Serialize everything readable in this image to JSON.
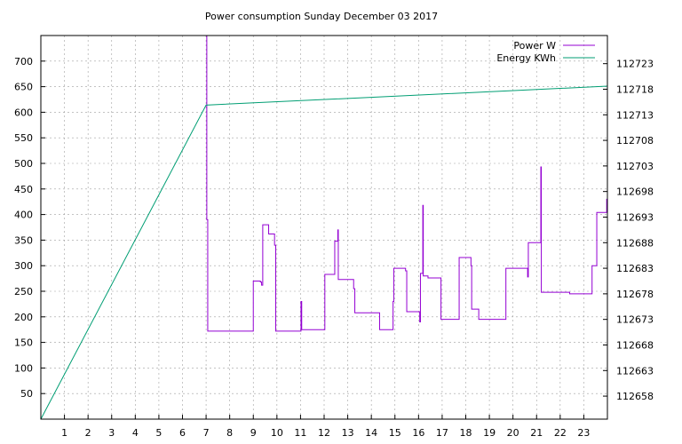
{
  "chart_data": {
    "type": "line",
    "title": "Power consumption Sunday December 03 2017",
    "xlabel": "",
    "ylabel": "",
    "y2label": "",
    "grid": true,
    "legend_position": "top-right",
    "x_ticks": [
      "1",
      "2",
      "3",
      "4",
      "5",
      "6",
      "7",
      "8",
      "9",
      "10",
      "11",
      "12",
      "13",
      "14",
      "15",
      "16",
      "17",
      "18",
      "19",
      "20",
      "21",
      "22",
      "23"
    ],
    "xlim": [
      0,
      24
    ],
    "y_ticks": [
      50,
      100,
      150,
      200,
      250,
      300,
      350,
      400,
      450,
      500,
      550,
      600,
      650,
      700
    ],
    "ylim": [
      0,
      750
    ],
    "y2_ticks": [
      112658,
      112663,
      112668,
      112673,
      112678,
      112683,
      112688,
      112693,
      112698,
      112703,
      112708,
      112713,
      112718,
      112723
    ],
    "y2lim": [
      112653.5,
      112728.5
    ],
    "series": [
      {
        "name": "Power W",
        "axis": "left",
        "color": "#9400d3",
        "step": true,
        "points": [
          [
            7.0,
            750
          ],
          [
            7.03,
            390
          ],
          [
            7.07,
            172
          ],
          [
            9.0,
            172
          ],
          [
            9.0,
            270
          ],
          [
            9.3,
            268
          ],
          [
            9.35,
            262
          ],
          [
            9.4,
            380
          ],
          [
            9.6,
            380
          ],
          [
            9.65,
            362
          ],
          [
            9.85,
            362
          ],
          [
            9.9,
            340
          ],
          [
            9.95,
            172
          ],
          [
            11.0,
            172
          ],
          [
            11.02,
            230
          ],
          [
            11.05,
            175
          ],
          [
            12.0,
            175
          ],
          [
            12.03,
            283
          ],
          [
            12.4,
            283
          ],
          [
            12.45,
            348
          ],
          [
            12.55,
            348
          ],
          [
            12.58,
            370
          ],
          [
            12.6,
            273
          ],
          [
            13.2,
            273
          ],
          [
            13.25,
            255
          ],
          [
            13.3,
            208
          ],
          [
            14.3,
            208
          ],
          [
            14.35,
            175
          ],
          [
            14.9,
            175
          ],
          [
            14.92,
            230
          ],
          [
            14.95,
            295
          ],
          [
            15.4,
            295
          ],
          [
            15.45,
            290
          ],
          [
            15.5,
            210
          ],
          [
            16.0,
            210
          ],
          [
            16.05,
            190
          ],
          [
            16.08,
            285
          ],
          [
            16.15,
            285
          ],
          [
            16.18,
            418
          ],
          [
            16.2,
            280
          ],
          [
            16.4,
            276
          ],
          [
            16.9,
            276
          ],
          [
            16.95,
            195
          ],
          [
            17.7,
            195
          ],
          [
            17.72,
            316
          ],
          [
            18.2,
            316
          ],
          [
            18.22,
            300
          ],
          [
            18.25,
            215
          ],
          [
            18.5,
            215
          ],
          [
            18.55,
            195
          ],
          [
            19.65,
            195
          ],
          [
            19.7,
            295
          ],
          [
            20.6,
            295
          ],
          [
            20.62,
            278
          ],
          [
            20.65,
            345
          ],
          [
            21.15,
            345
          ],
          [
            21.18,
            493
          ],
          [
            21.2,
            248
          ],
          [
            22.35,
            248
          ],
          [
            22.4,
            245
          ],
          [
            23.3,
            245
          ],
          [
            23.35,
            300
          ],
          [
            23.5,
            300
          ],
          [
            23.55,
            404
          ],
          [
            23.95,
            404
          ],
          [
            23.97,
            430
          ],
          [
            24.0,
            320
          ]
        ]
      },
      {
        "name": "Energy KWh",
        "axis": "right",
        "color": "#009e73",
        "step": false,
        "points": [
          [
            0.0,
            112653.5
          ],
          [
            7.0,
            112714.9
          ],
          [
            24.0,
            112718.6
          ]
        ]
      }
    ]
  }
}
